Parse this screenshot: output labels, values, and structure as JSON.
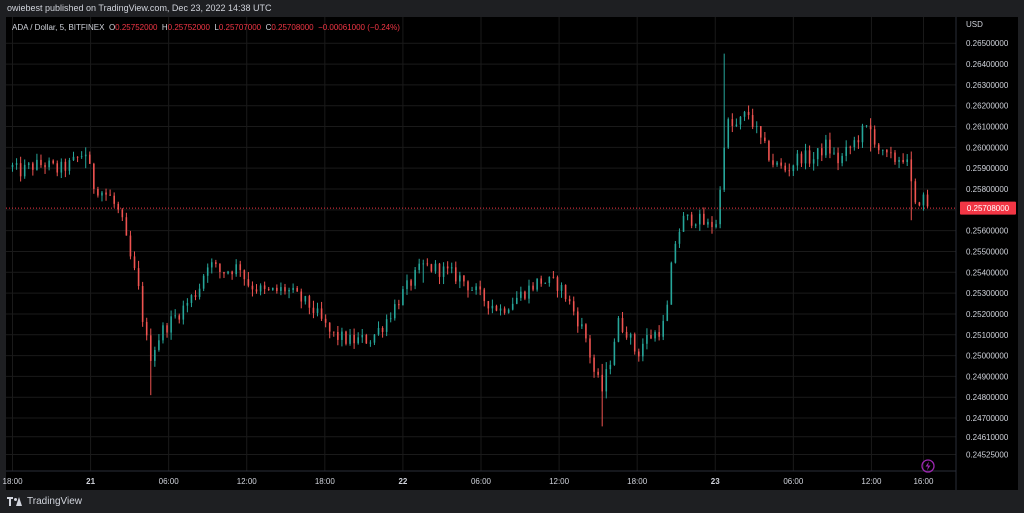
{
  "header": {
    "published": "owiebest published on TradingView.com, Dec 23, 2022 14:38 UTC"
  },
  "legend": {
    "symbol": "ADA / Dollar, 5, BITFINEX",
    "o_label": "O",
    "o_value": "0.25752000",
    "h_label": "H",
    "h_value": "0.25752000",
    "l_label": "L",
    "l_value": "0.25707000",
    "c_label": "C",
    "c_value": "0.25708000",
    "change": "−0.00061000 (−0.24%)"
  },
  "footer": {
    "brand": "TradingView"
  },
  "colors": {
    "up": "#26a69a",
    "down": "#ef5350",
    "price_line": "#f23645",
    "background": "#000000",
    "grid": "#1a1a1a",
    "text": "#d1d4dc",
    "badge_icon": "#9c27b0"
  },
  "icons": {
    "logo": "tradingview-logo-icon",
    "badge": "lightning-icon"
  },
  "chart_data": {
    "type": "candlestick",
    "currency": "USD",
    "timeframe": "5",
    "current_price": 0.25708,
    "ylim": [
      0.24525,
      0.26542
    ],
    "y_ticks": [
      0.265,
      0.264,
      0.263,
      0.262,
      0.261,
      0.26,
      0.259,
      0.258,
      0.257,
      0.256,
      0.255,
      0.254,
      0.253,
      0.252,
      0.251,
      0.25,
      0.249,
      0.248,
      0.247,
      0.2461,
      0.24525
    ],
    "y_tick_labels": [
      "0.26500000",
      "0.26400000",
      "0.26300000",
      "0.26200000",
      "0.26100000",
      "0.26000000",
      "0.25900000",
      "0.25800000",
      "",
      "0.25600000",
      "0.25500000",
      "0.25400000",
      "0.25300000",
      "0.25200000",
      "0.25100000",
      "0.25000000",
      "0.24900000",
      "0.24800000",
      "0.24700000",
      "0.24610000",
      "0.24525000"
    ],
    "price_badge": "0.25708000",
    "x_ticks": [
      {
        "h": 0,
        "label": "18:00",
        "bold": false
      },
      {
        "h": 6,
        "label": "21",
        "bold": true
      },
      {
        "h": 12,
        "label": "06:00",
        "bold": false
      },
      {
        "h": 18,
        "label": "12:00",
        "bold": false
      },
      {
        "h": 24,
        "label": "18:00",
        "bold": false
      },
      {
        "h": 30,
        "label": "22",
        "bold": true
      },
      {
        "h": 36,
        "label": "06:00",
        "bold": false
      },
      {
        "h": 42,
        "label": "12:00",
        "bold": false
      },
      {
        "h": 48,
        "label": "18:00",
        "bold": false
      },
      {
        "h": 54,
        "label": "23",
        "bold": true
      },
      {
        "h": 60,
        "label": "06:00",
        "bold": false
      },
      {
        "h": 66,
        "label": "12:00",
        "bold": false
      },
      {
        "h": 70,
        "label": "16:00",
        "bold": false
      }
    ],
    "x_range_hours": [
      -0.5,
      72.5
    ],
    "path_points": [
      [
        -0.5,
        0.2593
      ],
      [
        0.5,
        0.2588
      ],
      [
        1.5,
        0.2591
      ],
      [
        2.5,
        0.2592
      ],
      [
        3.5,
        0.2589
      ],
      [
        4.5,
        0.2592
      ],
      [
        5.6,
        0.2598
      ],
      [
        6.2,
        0.2582
      ],
      [
        7.5,
        0.2576
      ],
      [
        8.3,
        0.2567
      ],
      [
        9.0,
        0.2548
      ],
      [
        9.6,
        0.2535
      ],
      [
        10.2,
        0.251
      ],
      [
        10.6,
        0.25
      ],
      [
        11.5,
        0.2512
      ],
      [
        13.0,
        0.2522
      ],
      [
        14.3,
        0.2532
      ],
      [
        15.0,
        0.2545
      ],
      [
        16.0,
        0.254
      ],
      [
        17.5,
        0.2543
      ],
      [
        18.0,
        0.2535
      ],
      [
        19.5,
        0.253
      ],
      [
        21.0,
        0.2532
      ],
      [
        23.0,
        0.2523
      ],
      [
        24.5,
        0.251
      ],
      [
        26.0,
        0.2507
      ],
      [
        27.5,
        0.2508
      ],
      [
        28.5,
        0.2515
      ],
      [
        30.0,
        0.253
      ],
      [
        31.5,
        0.2543
      ],
      [
        33.0,
        0.2541
      ],
      [
        34.5,
        0.2537
      ],
      [
        36.0,
        0.2528
      ],
      [
        37.5,
        0.2522
      ],
      [
        39.0,
        0.2529
      ],
      [
        40.5,
        0.2536
      ],
      [
        42.0,
        0.2534
      ],
      [
        43.0,
        0.2523
      ],
      [
        44.0,
        0.251
      ],
      [
        44.7,
        0.2492
      ],
      [
        45.3,
        0.2483
      ],
      [
        45.9,
        0.2497
      ],
      [
        46.5,
        0.2516
      ],
      [
        47.2,
        0.2512
      ],
      [
        48.0,
        0.25
      ],
      [
        48.6,
        0.2508
      ],
      [
        49.5,
        0.2511
      ],
      [
        50.2,
        0.2516
      ],
      [
        50.8,
        0.2552
      ],
      [
        51.5,
        0.2565
      ],
      [
        52.5,
        0.2566
      ],
      [
        53.5,
        0.2562
      ],
      [
        54.2,
        0.2565
      ],
      [
        54.8,
        0.2612
      ],
      [
        55.5,
        0.2609
      ],
      [
        56.5,
        0.2617
      ],
      [
        57.5,
        0.2603
      ],
      [
        58.5,
        0.2592
      ],
      [
        59.5,
        0.2589
      ],
      [
        60.5,
        0.2596
      ],
      [
        61.5,
        0.2594
      ],
      [
        62.5,
        0.2601
      ],
      [
        63.5,
        0.2593
      ],
      [
        64.5,
        0.2601
      ],
      [
        65.5,
        0.2609
      ],
      [
        66.0,
        0.2608
      ],
      [
        66.8,
        0.2596
      ],
      [
        67.7,
        0.2594
      ],
      [
        68.6,
        0.2596
      ],
      [
        69.0,
        0.2584
      ],
      [
        69.4,
        0.257
      ],
      [
        69.8,
        0.2577
      ],
      [
        70.5,
        0.2571
      ]
    ],
    "extremes": [
      {
        "h": 10.6,
        "low": 0.2481,
        "high": 0.251
      },
      {
        "h": 45.3,
        "low": 0.2466,
        "high": 0.2496
      },
      {
        "h": 54.8,
        "low": 0.2604,
        "high": 0.2645
      },
      {
        "h": 69.0,
        "low": 0.2565,
        "high": 0.2598
      },
      {
        "h": 5.6,
        "low": 0.259,
        "high": 0.26
      },
      {
        "h": 66.0,
        "low": 0.2598,
        "high": 0.2614
      },
      {
        "h": 31.5,
        "low": 0.2535,
        "high": 0.2546
      }
    ]
  }
}
